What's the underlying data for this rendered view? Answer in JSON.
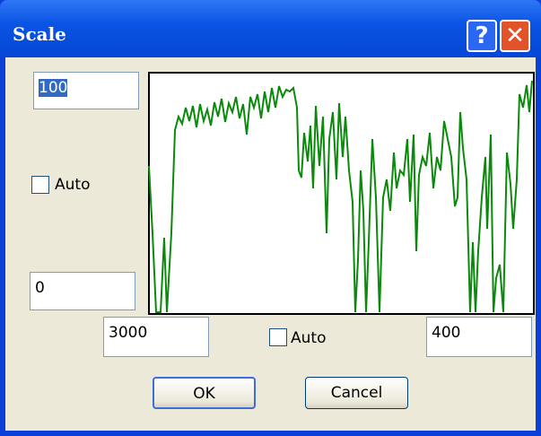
{
  "window": {
    "title": "Scale"
  },
  "fields": {
    "y_max": "100",
    "y_min": "0",
    "x_start": "3000",
    "x_end": "400"
  },
  "checkboxes": {
    "y_auto": "Auto",
    "x_auto": "Auto"
  },
  "buttons": {
    "ok": "OK",
    "cancel": "Cancel"
  }
}
